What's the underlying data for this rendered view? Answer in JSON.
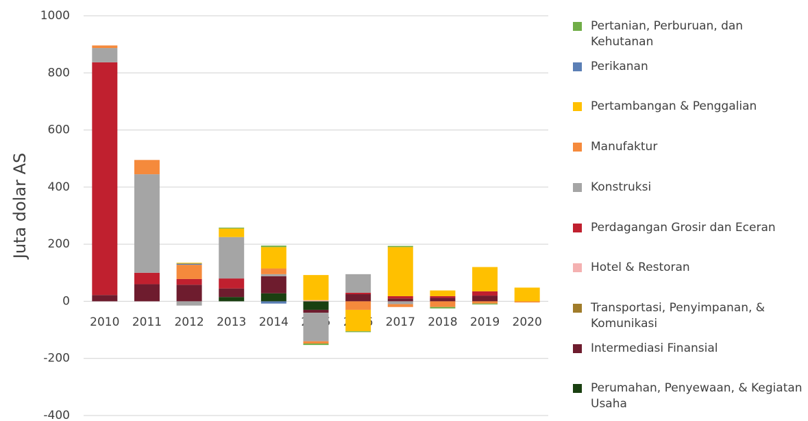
{
  "chart_data": {
    "type": "stacked_bar",
    "y_label": "Juta dolar AS",
    "categories": [
      "2010",
      "2011",
      "2012",
      "2013",
      "2014",
      "2015",
      "2016",
      "2017",
      "2018",
      "2019",
      "2020"
    ],
    "ylim": [
      -400,
      1000
    ],
    "yticks": [
      -400,
      -200,
      0,
      200,
      400,
      600,
      800,
      1000
    ],
    "grid": true,
    "legend": "right",
    "series": [
      {
        "name": "Pertanian, Perburuan, dan Kehutanan",
        "color": "#70ad47",
        "values": [
          0,
          0,
          0,
          3,
          5,
          -5,
          -3,
          4,
          -5,
          -3,
          0
        ]
      },
      {
        "name": "Perikanan",
        "color": "#5b7fb5",
        "values": [
          0,
          0,
          4,
          0,
          -8,
          0,
          0,
          0,
          0,
          0,
          0
        ]
      },
      {
        "name": "Pertambangan & Penggalian",
        "color": "#ffc000",
        "values": [
          0,
          0,
          3,
          30,
          75,
          88,
          -75,
          172,
          20,
          85,
          48
        ]
      },
      {
        "name": "Manufaktur",
        "color": "#f58a3c",
        "values": [
          9,
          50,
          50,
          0,
          20,
          -8,
          -30,
          -10,
          -20,
          -8,
          -4
        ]
      },
      {
        "name": "Konstruksi",
        "color": "#a5a5a5",
        "values": [
          50,
          345,
          -15,
          145,
          7,
          -100,
          65,
          -10,
          0,
          0,
          0
        ]
      },
      {
        "name": "Perdagangan Grosir dan Eceran",
        "color": "#c0202f",
        "values": [
          815,
          40,
          20,
          35,
          0,
          0,
          5,
          8,
          6,
          15,
          0
        ]
      },
      {
        "name": "Hotel & Restoran",
        "color": "#f4b1b1",
        "values": [
          0,
          0,
          0,
          0,
          0,
          4,
          0,
          0,
          0,
          0,
          0
        ]
      },
      {
        "name": "Transportasi, Penyimpanan, & Komunikasi",
        "color": "#a07c2a",
        "values": [
          0,
          0,
          0,
          0,
          0,
          0,
          0,
          0,
          0,
          0,
          0
        ]
      },
      {
        "name": "Intermediasi Finansial",
        "color": "#6e1c2e",
        "values": [
          22,
          60,
          58,
          30,
          60,
          -10,
          25,
          10,
          12,
          20,
          0
        ]
      },
      {
        "name": "Perumahan, Penyewaan, & Kegiatan Usaha",
        "color": "#1a4011",
        "values": [
          0,
          0,
          0,
          15,
          28,
          -30,
          0,
          0,
          0,
          0,
          0
        ]
      }
    ]
  }
}
